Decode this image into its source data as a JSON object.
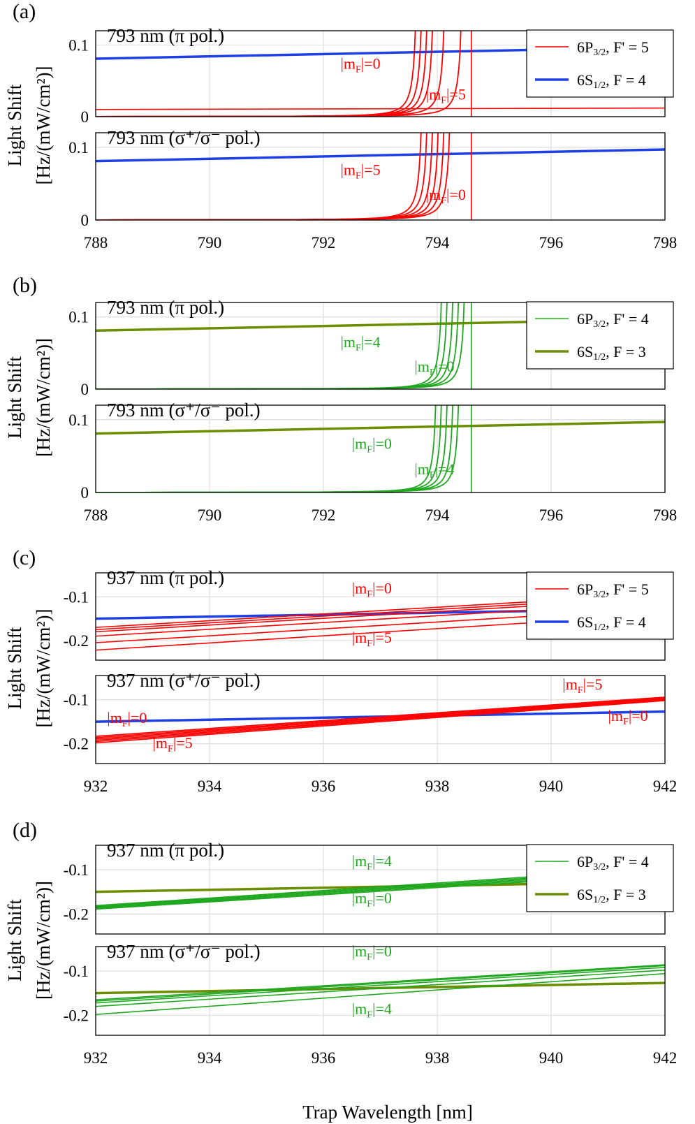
{
  "figure": {
    "xlabel_bottom": "Trap Wavelength [nm]",
    "ylabel_line1": "Light Shift",
    "ylabel_line2": "[Hz/(mW/cm²)]"
  },
  "colors": {
    "red": "#ff0000",
    "blue": "#1f3fe6",
    "green": "#1fa81f",
    "olive": "#6b8e00",
    "grid": "#e0e0e0"
  },
  "chart_data": [
    {
      "type": "line",
      "panel": "(a)",
      "x_range": [
        788,
        798
      ],
      "xticks": [
        "788",
        "790",
        "792",
        "794",
        "796",
        "798"
      ],
      "legend": {
        "placement": "top-right",
        "entries": [
          {
            "main": "6P",
            "sub": "3/2",
            "rest": ", F' = 5",
            "color": "red",
            "thick": false
          },
          {
            "main": "6S",
            "sub": "1/2",
            "rest": ", F = 4",
            "color": "blue",
            "thick": true
          }
        ]
      },
      "resonance_marker_x": 794.6,
      "subplots": [
        {
          "title": "793 nm (π pol.)",
          "ylim": [
            0,
            0.12
          ],
          "yticks": [
            {
              "value": 0,
              "label": "0"
            },
            {
              "value": 0.1,
              "label": "0.1"
            }
          ],
          "series": [
            {
              "kind": "ground",
              "color": "blue",
              "x": [
                788,
                798
              ],
              "y": [
                0.081,
                0.097
              ]
            },
            {
              "kind": "pole",
              "color": "red",
              "pole_x": [
                793.7,
                793.8,
                793.9,
                794.0,
                794.2,
                794.5
              ],
              "c": 0.0023,
              "offset": 0.0,
              "trend": 0
            },
            {
              "kind": "flat",
              "color": "red",
              "x": [
                788,
                798
              ],
              "y": [
                0.01,
                0.012
              ]
            }
          ],
          "labels": [
            {
              "text_main": "|m",
              "sub": "F",
              "text_rest": "|=0",
              "x": 792.3,
              "y": 0.067
            },
            {
              "text_main": "|m",
              "sub": "F",
              "text_rest": "|=5",
              "x": 793.8,
              "y": 0.024
            }
          ]
        },
        {
          "title": "793 nm (σ⁺/σ⁻ pol.)",
          "ylim": [
            0,
            0.12
          ],
          "yticks": [
            {
              "value": 0,
              "label": "0"
            },
            {
              "value": 0.1,
              "label": "0.1"
            }
          ],
          "series": [
            {
              "kind": "ground",
              "color": "blue",
              "x": [
                788,
                798
              ],
              "y": [
                0.081,
                0.097
              ]
            },
            {
              "kind": "pole",
              "color": "red",
              "pole_x": [
                793.8,
                793.9,
                794.0,
                794.1,
                794.2,
                794.3
              ],
              "c": 0.0023,
              "offset": 0.0,
              "trend": 0
            }
          ],
          "labels": [
            {
              "text_main": "|m",
              "sub": "F",
              "text_rest": "|=5",
              "x": 792.3,
              "y": 0.062
            },
            {
              "text_main": "|m",
              "sub": "F",
              "text_rest": "|=0",
              "x": 793.8,
              "y": 0.028
            }
          ]
        }
      ]
    },
    {
      "type": "line",
      "panel": "(b)",
      "x_range": [
        788,
        798
      ],
      "xticks": [
        "788",
        "790",
        "792",
        "794",
        "796",
        "798"
      ],
      "legend": {
        "placement": "top-right",
        "entries": [
          {
            "main": "6P",
            "sub": "3/2",
            "rest": ", F' = 4",
            "color": "green",
            "thick": false
          },
          {
            "main": "6S",
            "sub": "1/2",
            "rest": ", F = 3",
            "color": "olive",
            "thick": true
          }
        ]
      },
      "resonance_marker_x": 794.6,
      "subplots": [
        {
          "title": "793 nm (π pol.)",
          "ylim": [
            0,
            0.12
          ],
          "yticks": [
            {
              "value": 0,
              "label": "0"
            },
            {
              "value": 0.1,
              "label": "0.1"
            }
          ],
          "series": [
            {
              "kind": "ground",
              "color": "olive",
              "x": [
                788,
                798
              ],
              "y": [
                0.081,
                0.097
              ]
            },
            {
              "kind": "pole",
              "color": "green",
              "pole_x": [
                794.15,
                794.25,
                794.35,
                794.45,
                794.55
              ],
              "c": 0.002,
              "offset": 0.0,
              "trend": 0
            }
          ],
          "labels": [
            {
              "text_main": "|m",
              "sub": "F",
              "text_rest": "|=4",
              "x": 792.3,
              "y": 0.058
            },
            {
              "text_main": "|m",
              "sub": "F",
              "text_rest": "|=0",
              "x": 793.6,
              "y": 0.024
            }
          ]
        },
        {
          "title": "793 nm (σ⁺/σ⁻ pol.)",
          "ylim": [
            0,
            0.12
          ],
          "yticks": [
            {
              "value": 0,
              "label": "0"
            },
            {
              "value": 0.1,
              "label": "0.1"
            }
          ],
          "series": [
            {
              "kind": "ground",
              "color": "olive",
              "x": [
                788,
                798
              ],
              "y": [
                0.081,
                0.097
              ]
            },
            {
              "kind": "pole",
              "color": "green",
              "pole_x": [
                794.05,
                794.15,
                794.25,
                794.35,
                794.45
              ],
              "c": 0.002,
              "offset": 0.0,
              "trend": 0
            }
          ],
          "labels": [
            {
              "text_main": "|m",
              "sub": "F",
              "text_rest": "|=0",
              "x": 792.5,
              "y": 0.06
            },
            {
              "text_main": "|m",
              "sub": "F",
              "text_rest": "|=4",
              "x": 793.6,
              "y": 0.025
            }
          ]
        }
      ]
    },
    {
      "type": "line",
      "panel": "(c)",
      "x_range": [
        932,
        942
      ],
      "xticks": [
        "932",
        "934",
        "936",
        "938",
        "940",
        "942"
      ],
      "legend": {
        "placement": "top-right",
        "entries": [
          {
            "main": "6P",
            "sub": "3/2",
            "rest": ", F' = 5",
            "color": "red",
            "thick": false
          },
          {
            "main": "6S",
            "sub": "1/2",
            "rest": ", F = 4",
            "color": "blue",
            "thick": true
          }
        ]
      },
      "resonance_marker_x": null,
      "subplots": [
        {
          "title": "937 nm (π pol.)",
          "ylim": [
            -0.245,
            -0.045
          ],
          "yticks": [
            {
              "value": -0.1,
              "label": "-0.1"
            },
            {
              "value": -0.2,
              "label": "-0.2"
            }
          ],
          "series": [
            {
              "kind": "ground",
              "color": "blue",
              "x": [
                932,
                942
              ],
              "y": [
                -0.15,
                -0.127
              ]
            },
            {
              "kind": "line",
              "color": "red",
              "x": [
                932,
                942
              ],
              "y": [
                -0.17,
                -0.093
              ]
            },
            {
              "kind": "line",
              "color": "red",
              "x": [
                932,
                942
              ],
              "y": [
                -0.175,
                -0.098
              ]
            },
            {
              "kind": "line",
              "color": "red",
              "x": [
                932,
                942
              ],
              "y": [
                -0.18,
                -0.103
              ]
            },
            {
              "kind": "line",
              "color": "red",
              "x": [
                932,
                942
              ],
              "y": [
                -0.19,
                -0.112
              ]
            },
            {
              "kind": "line",
              "color": "red",
              "x": [
                932,
                942
              ],
              "y": [
                -0.205,
                -0.126
              ]
            },
            {
              "kind": "line",
              "color": "red",
              "x": [
                932,
                942
              ],
              "y": [
                -0.222,
                -0.14
              ]
            }
          ],
          "labels": [
            {
              "text_main": "|m",
              "sub": "F",
              "text_rest": "|=0",
              "x": 936.5,
              "y": -0.092
            },
            {
              "text_main": "|m",
              "sub": "F",
              "text_rest": "|=5",
              "x": 936.5,
              "y": -0.205
            }
          ]
        },
        {
          "title": "937 nm (σ⁺/σ⁻ pol.)",
          "ylim": [
            -0.245,
            -0.045
          ],
          "yticks": [
            {
              "value": -0.1,
              "label": "-0.1"
            },
            {
              "value": -0.2,
              "label": "-0.2"
            }
          ],
          "series": [
            {
              "kind": "ground",
              "color": "blue",
              "x": [
                932,
                942
              ],
              "y": [
                -0.15,
                -0.127
              ]
            },
            {
              "kind": "line",
              "color": "red",
              "x": [
                932,
                942
              ],
              "y": [
                -0.183,
                -0.094
              ]
            },
            {
              "kind": "line",
              "color": "red",
              "x": [
                932,
                942
              ],
              "y": [
                -0.186,
                -0.096
              ]
            },
            {
              "kind": "line",
              "color": "red",
              "x": [
                932,
                942
              ],
              "y": [
                -0.189,
                -0.097
              ]
            },
            {
              "kind": "line",
              "color": "red",
              "x": [
                932,
                942
              ],
              "y": [
                -0.192,
                -0.099
              ]
            },
            {
              "kind": "line",
              "color": "red",
              "x": [
                932,
                942
              ],
              "y": [
                -0.195,
                -0.1
              ]
            },
            {
              "kind": "line",
              "color": "red",
              "x": [
                932,
                942
              ],
              "y": [
                -0.198,
                -0.102
              ]
            }
          ],
          "labels": [
            {
              "text_main": "|m",
              "sub": "F",
              "text_rest": "|=0",
              "x": 932.2,
              "y": -0.153
            },
            {
              "text_main": "|m",
              "sub": "F",
              "text_rest": "|=5",
              "x": 933.0,
              "y": -0.21
            },
            {
              "text_main": "|m",
              "sub": "F",
              "text_rest": "|=5",
              "x": 940.2,
              "y": -0.077
            },
            {
              "text_main": "|m",
              "sub": "F",
              "text_rest": "|=0",
              "x": 941.0,
              "y": -0.148
            }
          ]
        }
      ]
    },
    {
      "type": "line",
      "panel": "(d)",
      "x_range": [
        932,
        942
      ],
      "xticks": [
        "932",
        "934",
        "936",
        "938",
        "940",
        "942"
      ],
      "legend": {
        "placement": "top-right",
        "entries": [
          {
            "main": "6P",
            "sub": "3/2",
            "rest": ", F' = 4",
            "color": "green",
            "thick": false
          },
          {
            "main": "6S",
            "sub": "1/2",
            "rest": ", F = 3",
            "color": "olive",
            "thick": true
          }
        ]
      },
      "resonance_marker_x": null,
      "subplots": [
        {
          "title": "937 nm (π pol.)",
          "ylim": [
            -0.245,
            -0.045
          ],
          "yticks": [
            {
              "value": -0.1,
              "label": "-0.1"
            },
            {
              "value": -0.2,
              "label": "-0.2"
            }
          ],
          "series": [
            {
              "kind": "ground",
              "color": "olive",
              "x": [
                932,
                942
              ],
              "y": [
                -0.15,
                -0.127
              ]
            },
            {
              "kind": "line",
              "color": "green",
              "x": [
                932,
                942
              ],
              "y": [
                -0.181,
                -0.096
              ]
            },
            {
              "kind": "line",
              "color": "green",
              "x": [
                932,
                942
              ],
              "y": [
                -0.183,
                -0.099
              ]
            },
            {
              "kind": "line",
              "color": "green",
              "x": [
                932,
                942
              ],
              "y": [
                -0.185,
                -0.102
              ]
            },
            {
              "kind": "line",
              "color": "green",
              "x": [
                932,
                942
              ],
              "y": [
                -0.187,
                -0.105
              ]
            },
            {
              "kind": "line",
              "color": "green",
              "x": [
                932,
                942
              ],
              "y": [
                -0.189,
                -0.108
              ]
            }
          ],
          "labels": [
            {
              "text_main": "|m",
              "sub": "F",
              "text_rest": "|=4",
              "x": 936.5,
              "y": -0.092
            },
            {
              "text_main": "|m",
              "sub": "F",
              "text_rest": "|=0",
              "x": 936.5,
              "y": -0.176
            }
          ]
        },
        {
          "title": "937 nm (σ⁺/σ⁻ pol.)",
          "ylim": [
            -0.245,
            -0.045
          ],
          "yticks": [
            {
              "value": -0.1,
              "label": "-0.1"
            },
            {
              "value": -0.2,
              "label": "-0.2"
            }
          ],
          "series": [
            {
              "kind": "ground",
              "color": "olive",
              "x": [
                932,
                942
              ],
              "y": [
                -0.15,
                -0.127
              ]
            },
            {
              "kind": "line",
              "color": "green",
              "x": [
                932,
                942
              ],
              "y": [
                -0.165,
                -0.086
              ]
            },
            {
              "kind": "line",
              "color": "green",
              "x": [
                932,
                942
              ],
              "y": [
                -0.168,
                -0.088
              ]
            },
            {
              "kind": "line",
              "color": "green",
              "x": [
                932,
                942
              ],
              "y": [
                -0.172,
                -0.092
              ]
            },
            {
              "kind": "line",
              "color": "green",
              "x": [
                932,
                942
              ],
              "y": [
                -0.18,
                -0.098
              ]
            },
            {
              "kind": "line",
              "color": "green",
              "x": [
                932,
                942
              ],
              "y": [
                -0.198,
                -0.106
              ]
            }
          ],
          "labels": [
            {
              "text_main": "|m",
              "sub": "F",
              "text_rest": "|=0",
              "x": 936.5,
              "y": -0.067
            },
            {
              "text_main": "|m",
              "sub": "F",
              "text_rest": "|=4",
              "x": 936.5,
              "y": -0.197
            }
          ]
        }
      ]
    }
  ]
}
